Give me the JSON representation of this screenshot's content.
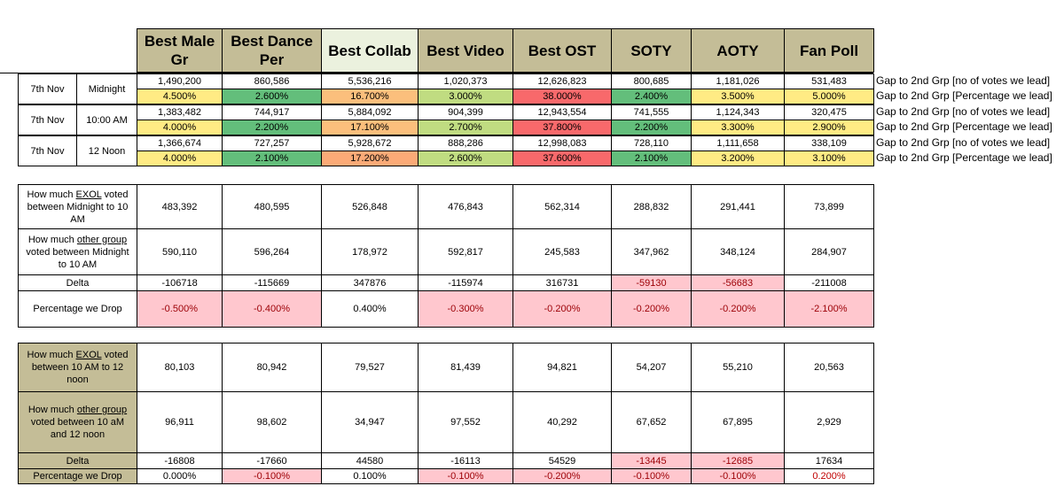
{
  "headers": [
    "Best Male Gr",
    "Best Dance Per",
    "Best Collab",
    "Best Video",
    "Best OST",
    "SOTY",
    "AOTY",
    "Fan Poll"
  ],
  "top_rows": [
    {
      "date": "7th Nov",
      "time": "Midnight",
      "votes": [
        "1,490,200",
        "860,586",
        "5,536,216",
        "1,020,373",
        "12,626,823",
        "800,685",
        "1,181,026",
        "531,483"
      ],
      "pct": [
        "4.500%",
        "2.600%",
        "16.700%",
        "3.000%",
        "38.000%",
        "2.400%",
        "3.500%",
        "5.000%"
      ]
    },
    {
      "date": "7th Nov",
      "time": "10:00 AM",
      "votes": [
        "1,383,482",
        "744,917",
        "5,884,092",
        "904,399",
        "12,943,554",
        "741,555",
        "1,124,343",
        "320,475"
      ],
      "pct": [
        "4.000%",
        "2.200%",
        "17.100%",
        "2.700%",
        "37.800%",
        "2.200%",
        "3.300%",
        "2.900%"
      ]
    },
    {
      "date": "7th Nov",
      "time": "12 Noon",
      "votes": [
        "1,366,674",
        "727,257",
        "5,928,672",
        "888,286",
        "12,998,083",
        "728,110",
        "1,111,658",
        "338,109"
      ],
      "pct": [
        "4.000%",
        "2.100%",
        "17.200%",
        "2.600%",
        "37.600%",
        "2.100%",
        "3.200%",
        "3.100%"
      ]
    }
  ],
  "pct_colors": [
    [
      "#ffeb84",
      "#63be7b",
      "#fbbf7c",
      "#c0dc81",
      "#f8696b",
      "#63be7b",
      "#ffeb84",
      "#ffeb84"
    ],
    [
      "#ffeb84",
      "#63be7b",
      "#fbbf7c",
      "#c0dc81",
      "#f8696b",
      "#63be7b",
      "#ffeb84",
      "#ffeb84"
    ],
    [
      "#ffeb84",
      "#63be7b",
      "#fbaa77",
      "#c0dc81",
      "#f8696b",
      "#63be7b",
      "#ffeb84",
      "#ffeb84"
    ]
  ],
  "side_labels": {
    "votes": "Gap to 2nd Grp [no of votes we lead]",
    "pct": "Gap to 2nd Grp [Percentage we lead]"
  },
  "section1": {
    "exol_label": {
      "pre": "How much ",
      "u": "EXOL",
      "post": " voted between Midnight to 10 AM"
    },
    "other_label": {
      "pre": "How much ",
      "u": "other group",
      "post": " voted between Midnight to 10 AM"
    },
    "delta_label": "Delta",
    "drop_label": "Percentage we Drop",
    "exol": [
      "483,392",
      "480,595",
      "526,848",
      "476,843",
      "562,314",
      "288,832",
      "291,441",
      "73,899"
    ],
    "other": [
      "590,110",
      "596,264",
      "178,972",
      "592,817",
      "245,583",
      "347,962",
      "348,124",
      "284,907"
    ],
    "delta": [
      "-106718",
      "-115669",
      "347876",
      "-115974",
      "316731",
      "-59130",
      "-56683",
      "-211008"
    ],
    "drop": [
      "-0.500%",
      "-0.400%",
      "0.400%",
      "-0.300%",
      "-0.200%",
      "-0.200%",
      "-0.200%",
      "-2.100%"
    ]
  },
  "section2": {
    "exol_label": {
      "pre": "How much ",
      "u": "EXOL",
      "post": " voted between 10 AM to 12 noon"
    },
    "other_label": {
      "pre": "How much ",
      "u": "other group",
      "post": " voted between 10 aM and 12 noon"
    },
    "delta_label": "Delta",
    "drop_label": "Percentage we Drop",
    "exol": [
      "80,103",
      "80,942",
      "79,527",
      "81,439",
      "94,821",
      "54,207",
      "55,210",
      "20,563"
    ],
    "other": [
      "96,911",
      "98,602",
      "34,947",
      "97,552",
      "40,292",
      "67,652",
      "67,895",
      "2,929"
    ],
    "delta": [
      "-16808",
      "-17660",
      "44580",
      "-16113",
      "54529",
      "-13445",
      "-12685",
      "17634"
    ],
    "drop": [
      "0.000%",
      "-0.100%",
      "0.100%",
      "-0.100%",
      "-0.200%",
      "-0.100%",
      "-0.100%",
      "0.200%"
    ]
  },
  "highlight": {
    "s1_delta_pink": [
      5,
      6
    ],
    "s1_drop_pink": [
      0,
      1,
      3,
      4,
      5,
      6,
      7
    ],
    "s2_delta_pink": [
      5,
      6
    ],
    "s2_drop_pink": [
      1,
      3,
      4,
      5,
      6
    ],
    "s2_drop_redtext": [
      7
    ]
  }
}
